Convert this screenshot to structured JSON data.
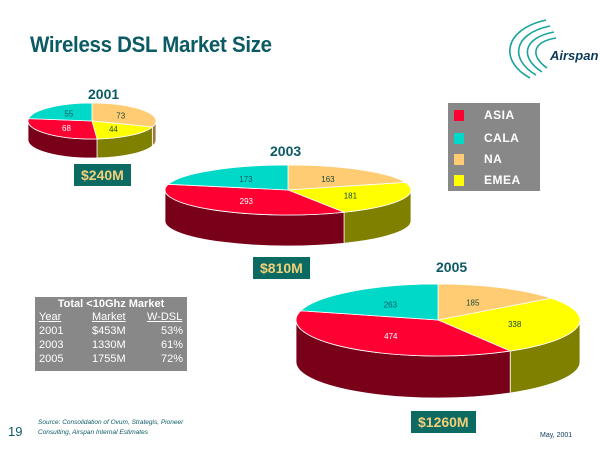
{
  "slide": {
    "title": "Wireless DSL Market Size",
    "logo_text": "Airspan",
    "slide_number": "19",
    "source_line1": "Source: Consolidation of Ovum, Strategis, Pioneer",
    "source_line2": "Consulting, Airspan Internal Estimates",
    "date": "May, 2001"
  },
  "legend": {
    "items": [
      {
        "label": "ASIA",
        "color": "#ff0033"
      },
      {
        "label": "CALA",
        "color": "#00d8c8"
      },
      {
        "label": "NA",
        "color": "#ffcc73"
      },
      {
        "label": "EMEA",
        "color": "#ffff00"
      }
    ]
  },
  "market_table": {
    "title": "Total <10Ghz Market",
    "headers": [
      "Year",
      "Market",
      "W-DSL"
    ],
    "rows": [
      [
        "2001",
        "$453M",
        "53%"
      ],
      [
        "2003",
        "1330M",
        "61%"
      ],
      [
        "2005",
        "1755M",
        "72%"
      ]
    ]
  },
  "chart_data": [
    {
      "type": "pie",
      "title": "2001",
      "total_label": "$240M",
      "categories": [
        "ASIA",
        "CALA",
        "NA",
        "EMEA"
      ],
      "values": [
        68,
        55,
        73,
        44
      ],
      "units": "$M"
    },
    {
      "type": "pie",
      "title": "2003",
      "total_label": "$810M",
      "categories": [
        "ASIA",
        "CALA",
        "NA",
        "EMEA"
      ],
      "values": [
        293,
        173,
        163,
        181
      ],
      "units": "$M"
    },
    {
      "type": "pie",
      "title": "2005",
      "total_label": "$1260M",
      "categories": [
        "ASIA",
        "CALA",
        "NA",
        "EMEA"
      ],
      "values": [
        474,
        263,
        185,
        338
      ],
      "units": "$M"
    }
  ]
}
